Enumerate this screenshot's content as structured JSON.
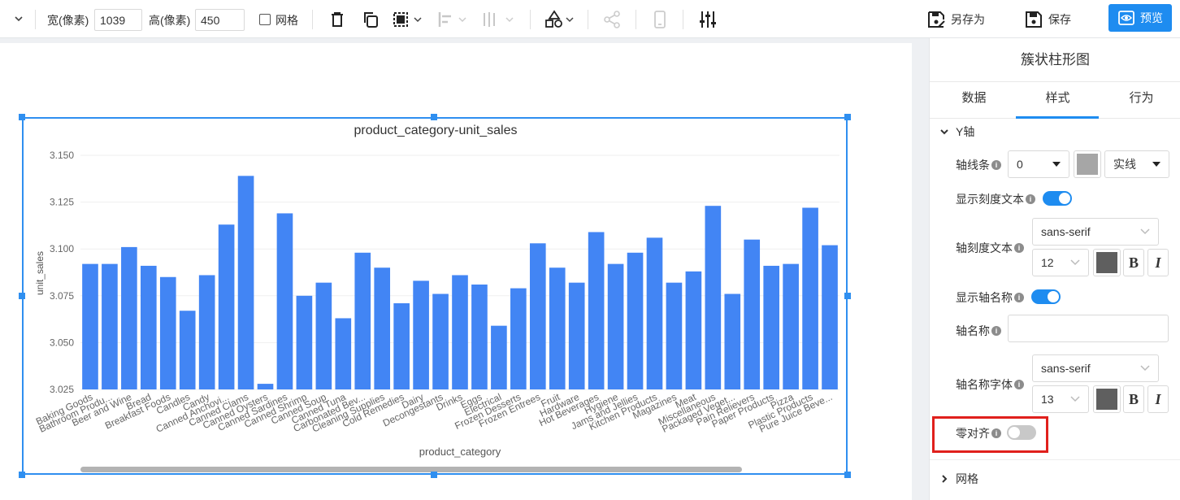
{
  "toolbar": {
    "width_label": "宽(像素)",
    "width_value": "1039",
    "height_label": "高(像素)",
    "height_value": "450",
    "grid_label": "网格",
    "save_as_label": "另存为",
    "save_label": "保存",
    "preview_label": "预览",
    "icons": [
      "chevron-down-icon",
      "trash-icon",
      "copy-icon",
      "select-frame-icon",
      "align-left-icon",
      "align-center-icon",
      "shapes-icon",
      "share-icon",
      "mobile-icon",
      "sliders-icon"
    ]
  },
  "chart": {
    "title": "product_category-unit_sales",
    "accent_color": "#2f8ff0"
  },
  "chart_data": {
    "type": "bar",
    "title": "product_category-unit_sales",
    "xlabel": "product_category",
    "ylabel": "unit_sales",
    "ylim": [
      3.025,
      3.15
    ],
    "yticks": [
      "3.150",
      "3.125",
      "3.100",
      "3.075",
      "3.050",
      "3.025"
    ],
    "grid": true,
    "bar_color": "#4285f4",
    "categories": [
      "Baking Goods",
      "Bathroom Produ...",
      "Beer and Wine",
      "Bread",
      "Breakfast Foods",
      "Candles",
      "Candy",
      "Canned Anchovi...",
      "Canned Clams",
      "Canned Oysters",
      "Canned Sardines",
      "Canned Shrimp",
      "Canned Soup",
      "Canned Tuna",
      "Carbonated Bev...",
      "Cleaning Supplies",
      "Cold Remedies",
      "Dairy",
      "Decongestants",
      "Drinks",
      "Eggs",
      "Electrical",
      "Frozen Desserts",
      "Frozen Entrees",
      "Fruit",
      "Hardware",
      "Hot Beverages",
      "Hygiene",
      "Jams and Jellies",
      "Kitchen Products",
      "Magazines",
      "Meat",
      "Miscellaneous",
      "Packaged Veget...",
      "Pain Relievers",
      "Paper Products",
      "Pizza",
      "Plastic Products",
      "Pure Juice Beve..."
    ],
    "values": [
      3.092,
      3.092,
      3.101,
      3.091,
      3.085,
      3.067,
      3.086,
      3.113,
      3.139,
      3.028,
      3.119,
      3.075,
      3.082,
      3.063,
      3.098,
      3.09,
      3.071,
      3.083,
      3.076,
      3.086,
      3.081,
      3.059,
      3.079,
      3.103,
      3.09,
      3.082,
      3.109,
      3.092,
      3.098,
      3.106,
      3.082,
      3.088,
      3.123,
      3.076,
      3.105,
      3.091,
      3.092,
      3.122,
      3.102
    ]
  },
  "panel": {
    "title": "簇状柱形图",
    "tabs": [
      {
        "label": "数据"
      },
      {
        "label": "样式"
      },
      {
        "label": "行为"
      }
    ],
    "section_y": "Y轴",
    "axis_line_label": "轴线条",
    "axis_line_width": "0",
    "axis_line_color": "#a6a6a6",
    "axis_line_style": "实线",
    "show_tick_text_label": "显示刻度文本",
    "show_tick_text_on": true,
    "tick_text_label": "轴刻度文本",
    "tick_font": "sans-serif",
    "tick_size": "12",
    "tick_color": "#5f5f5f",
    "bold_label": "B",
    "italic_label": "I",
    "show_axis_name_label": "显示轴名称",
    "show_axis_name_on": true,
    "axis_name_label": "轴名称",
    "axis_name_value": "",
    "axis_name_font_label": "轴名称字体",
    "axis_name_font": "sans-serif",
    "axis_name_size": "13",
    "axis_name_color": "#5f5f5f",
    "zero_align_label": "零对齐",
    "zero_align_on": false,
    "section_grid": "网格",
    "toggle_on_color": "#1e8cf0",
    "toggle_off_color": "#c8c8c8",
    "highlight_color": "#e0201c"
  }
}
